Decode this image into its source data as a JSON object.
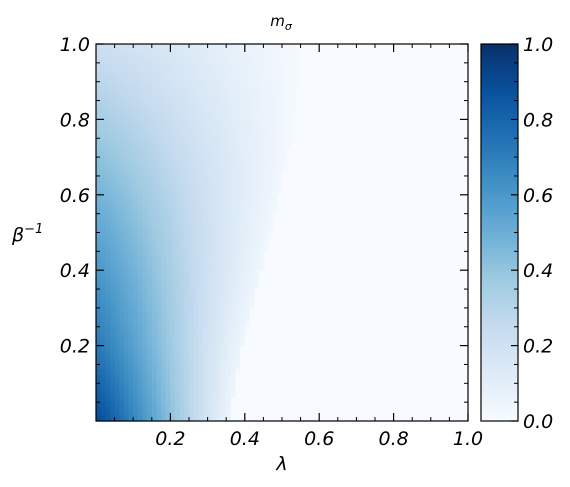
{
  "chart_data": {
    "type": "heatmap",
    "title": "m",
    "title_subscript": "σ",
    "xlabel": "λ",
    "ylabel": "β",
    "ylabel_superscript": "−1",
    "xlim": [
      0.0,
      1.0
    ],
    "ylim": [
      0.0,
      1.0
    ],
    "x_ticks": [
      "0.2",
      "0.4",
      "0.6",
      "0.8",
      "1.0"
    ],
    "y_ticks": [
      "0.2",
      "0.4",
      "0.6",
      "0.8",
      "1.0"
    ],
    "x_tick_values": [
      0.2,
      0.4,
      0.6,
      0.8,
      1.0
    ],
    "y_tick_values": [
      0.2,
      0.4,
      0.6,
      0.8,
      1.0
    ],
    "colorbar": {
      "colormap": "Blues",
      "range": [
        0.0,
        1.0
      ],
      "ticks": [
        "0.0",
        "0.2",
        "0.4",
        "0.6",
        "0.8",
        "1.0"
      ],
      "tick_values": [
        0.0,
        0.2,
        0.4,
        0.6,
        0.8,
        1.0
      ]
    },
    "colormap_stops": [
      "#f7fbff",
      "#deebf7",
      "#c6dbef",
      "#9ecae1",
      "#6baed6",
      "#4292c6",
      "#2171b5",
      "#08519c",
      "#08306b"
    ],
    "boundary": {
      "beta_inv": [
        0.0,
        0.1,
        0.2,
        0.3,
        0.4,
        0.5,
        0.6,
        0.7,
        0.8,
        0.9,
        1.0
      ],
      "lambda_c": [
        0.36,
        0.375,
        0.395,
        0.42,
        0.445,
        0.47,
        0.495,
        0.515,
        0.53,
        0.545,
        0.555
      ]
    },
    "peak": {
      "beta_inv": [
        0.0,
        0.2,
        0.4,
        0.6,
        0.8,
        1.0
      ],
      "m_sigma_at_lambda0": [
        0.9,
        0.72,
        0.6,
        0.48,
        0.35,
        0.22
      ]
    },
    "grid": false
  }
}
